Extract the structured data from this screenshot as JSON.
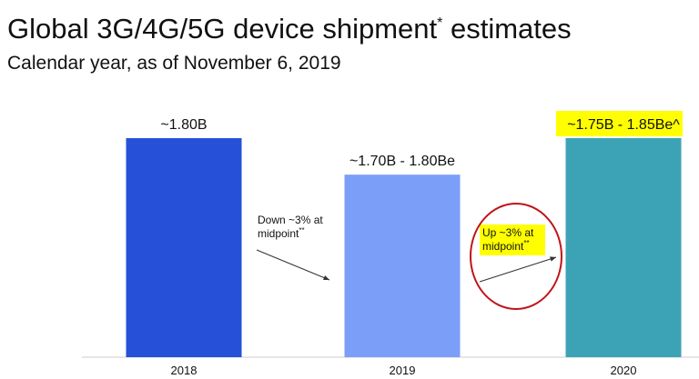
{
  "chart_data": {
    "type": "bar",
    "title_parts": [
      "Global 3G/4G/5G device shipment",
      "*",
      " estimates"
    ],
    "subtitle": "Calendar year, as of November 6, 2019",
    "categories": [
      "2018",
      "2019",
      "2020"
    ],
    "values": [
      1.8,
      1.75,
      1.8
    ],
    "value_labels": [
      "~1.80B",
      "~1.70B - 1.80Be",
      "~1.75B - 1.85Be^"
    ],
    "highlighted_labels": [
      false,
      false,
      true
    ],
    "colors": [
      "#2650d8",
      "#7b9ef8",
      "#3ba3b5"
    ],
    "ylim": [
      1.5,
      1.8
    ],
    "annotations": [
      {
        "lines": [
          "Down ~3% at",
          "midpoint"
        ],
        "marker": "**",
        "highlight": false,
        "circled": false
      },
      {
        "lines": [
          "Up ~3% at",
          "midpoint"
        ],
        "marker": "**",
        "highlight": true,
        "circled": true
      }
    ]
  }
}
